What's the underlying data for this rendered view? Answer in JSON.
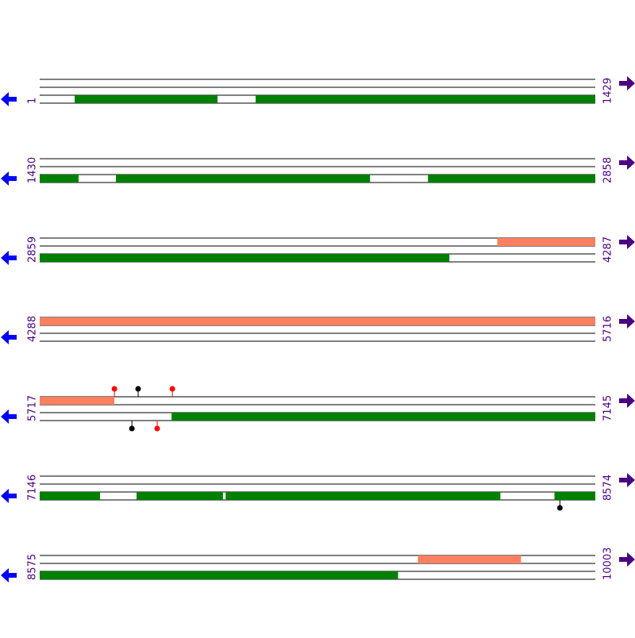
{
  "rows": [
    {
      "start": 1,
      "end": 1429,
      "top": [],
      "bottom": [
        [
          91,
          458
        ],
        [
          556,
          1429
        ]
      ],
      "pins_top": [],
      "pins_bottom": []
    },
    {
      "start": 1430,
      "end": 2858,
      "top": [],
      "bottom": [
        [
          1430,
          1530
        ],
        [
          1626,
          2279
        ],
        [
          2428,
          2858
        ]
      ],
      "pins_top": [],
      "pins_bottom": []
    },
    {
      "start": 2859,
      "end": 4287,
      "top": [
        [
          4035,
          4287
        ]
      ],
      "bottom": [
        [
          2859,
          3912
        ]
      ],
      "pins_top": [],
      "pins_bottom": []
    },
    {
      "start": 4288,
      "end": 5716,
      "top": [
        [
          4288,
          5716
        ]
      ],
      "bottom": [],
      "pins_top": [],
      "pins_bottom": []
    },
    {
      "start": 5717,
      "end": 7145,
      "top": [
        [
          5717,
          5909
        ]
      ],
      "bottom": [
        [
          6056,
          7145
        ]
      ],
      "pins_top": [
        {
          "pos": 5909,
          "color": "#ff0000"
        },
        {
          "pos": 5970,
          "color": "#000000"
        },
        {
          "pos": 6058,
          "color": "#ff0000"
        }
      ],
      "pins_bottom": [
        {
          "pos": 5954,
          "color": "#000000"
        },
        {
          "pos": 6019,
          "color": "#ff0000"
        }
      ]
    },
    {
      "start": 7146,
      "end": 8574,
      "top": [],
      "bottom": [
        [
          7146,
          7301
        ],
        [
          7395,
          7617
        ],
        [
          7624,
          8330
        ],
        [
          8469,
          8574
        ]
      ],
      "pins_top": [],
      "pins_bottom": [
        {
          "pos": 8483,
          "color": "#000000"
        }
      ]
    },
    {
      "start": 8575,
      "end": 10003,
      "top": [
        [
          9547,
          9812
        ]
      ],
      "bottom": [
        [
          8575,
          9496
        ]
      ],
      "pins_top": [],
      "pins_bottom": []
    }
  ],
  "top_color": "#fa8060",
  "bottom_color": "#008000"
}
